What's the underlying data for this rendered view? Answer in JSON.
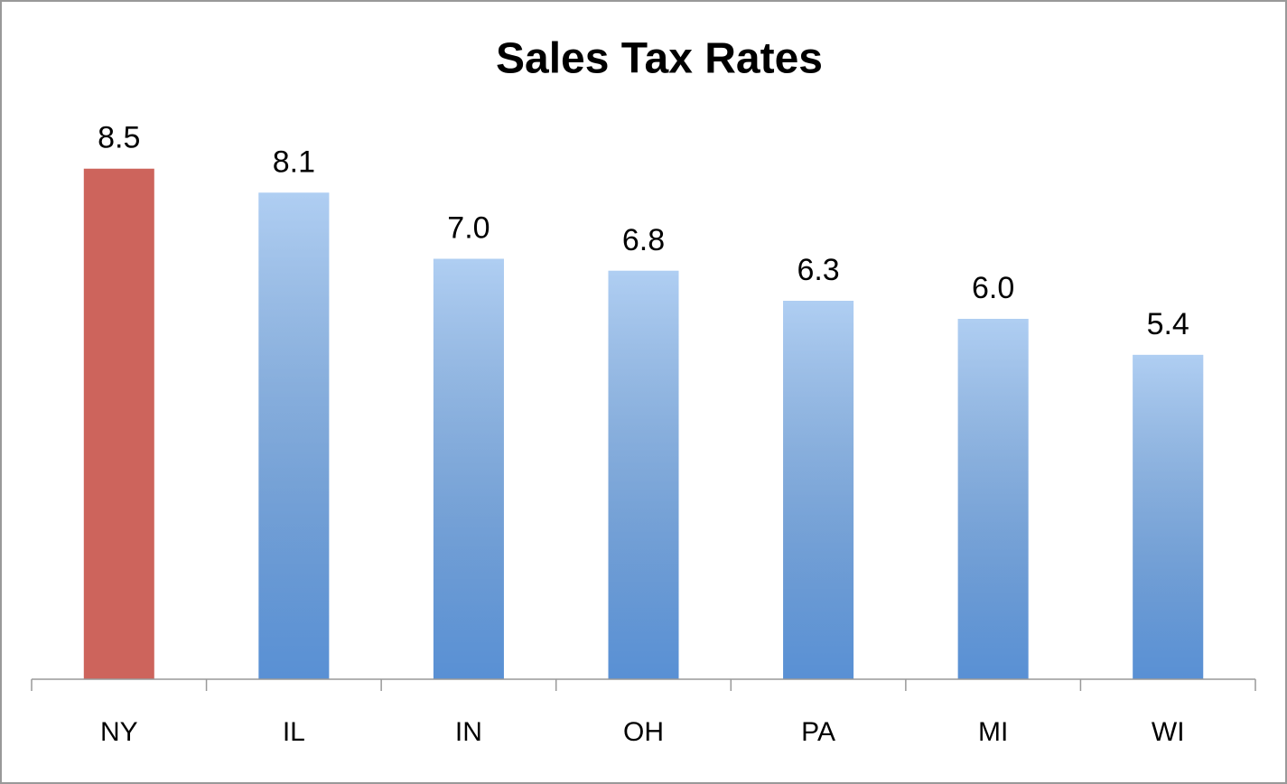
{
  "chart_data": {
    "type": "bar",
    "title": "Sales Tax Rates",
    "categories": [
      "NY",
      "IL",
      "IN",
      "OH",
      "PA",
      "MI",
      "WI"
    ],
    "values": [
      8.5,
      8.1,
      7.0,
      6.8,
      6.3,
      6.0,
      5.4
    ],
    "value_labels": [
      "8.5",
      "8.1",
      "7.0",
      "6.8",
      "6.3",
      "6.0",
      "5.4"
    ],
    "colors": [
      "#cd645c",
      "#6ea6e8",
      "#6ea6e8",
      "#6ea6e8",
      "#6ea6e8",
      "#6ea6e8",
      "#6ea6e8"
    ]
  }
}
